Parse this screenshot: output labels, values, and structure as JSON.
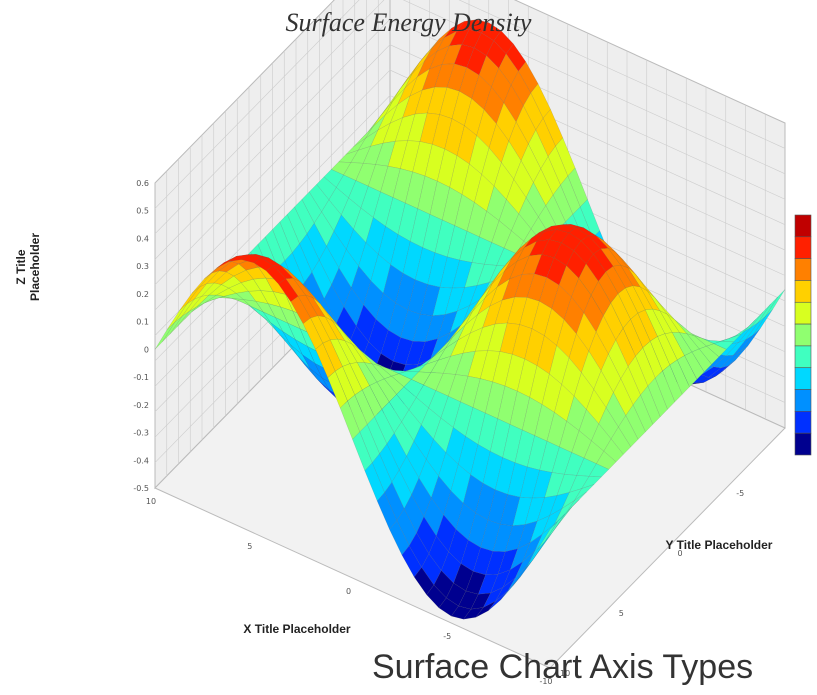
{
  "chart_data": {
    "type": "surface",
    "title": "Surface Energy Density",
    "xlabel": "X Title Placeholder",
    "ylabel": "Y Title Placeholder",
    "zlabel": "Z Title Placeholder",
    "x_ticks": [
      "10",
      "5",
      "0",
      "-5",
      "-10"
    ],
    "y_ticks": [
      "-10",
      "-5",
      "0",
      "5",
      "10"
    ],
    "z_ticks": [
      "0.6",
      "0.5",
      "0.4",
      "0.3",
      "0.2",
      "0.1",
      "0",
      "-0.1",
      "-0.2",
      "-0.3",
      "-0.4",
      "-0.5"
    ],
    "xlim": [
      -10,
      10
    ],
    "ylim": [
      -10,
      10
    ],
    "zlim": [
      -0.5,
      0.6
    ],
    "grid": true,
    "colormap": [
      "#00008f",
      "#0030ff",
      "#0090ff",
      "#00d8ff",
      "#40ffc0",
      "#90ff70",
      "#d8ff20",
      "#ffd000",
      "#ff8000",
      "#ff2000",
      "#c00000"
    ],
    "colorbar_levels": 11
  },
  "footer": {
    "text": "Surface Chart Axis Types"
  },
  "colors": {
    "wall": "#eeeeee",
    "floor": "#f2f2f2",
    "grid": "#cccccc"
  }
}
